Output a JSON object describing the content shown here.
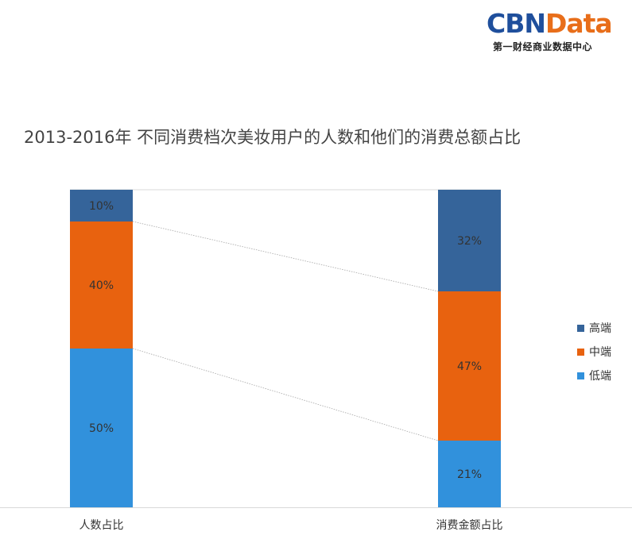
{
  "logo": {
    "main_cbn": "CBN",
    "main_data": "Data",
    "sub": "第一财经商业数据中心"
  },
  "chart_data": {
    "type": "bar",
    "stacked": true,
    "title": "2013-2016年 不同消费档次美妆用户的人数和他们的消费总额占比",
    "categories": [
      "人数占比",
      "消费金额占比"
    ],
    "series": [
      {
        "name": "高端",
        "color": "#35649a",
        "values": [
          10,
          32
        ],
        "labels": [
          "10%",
          "32%"
        ]
      },
      {
        "name": "中端",
        "color": "#e8620f",
        "values": [
          40,
          47
        ],
        "labels": [
          "40%",
          "47%"
        ]
      },
      {
        "name": "低端",
        "color": "#3191dc",
        "values": [
          50,
          21
        ],
        "labels": [
          "50%",
          "21%"
        ]
      }
    ],
    "ylim": [
      0,
      100
    ],
    "legend_position": "right",
    "connector_lines": true
  }
}
